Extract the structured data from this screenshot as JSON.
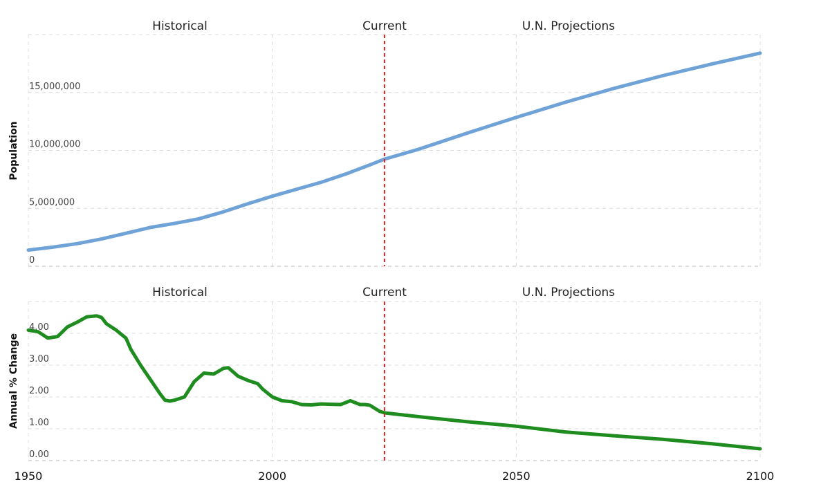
{
  "chart_data": [
    {
      "type": "line",
      "ylabel": "Population",
      "xlim": [
        1950,
        2100
      ],
      "ylim": [
        0,
        20000000
      ],
      "ytick_labels": [
        "0",
        "5,000,000",
        "10,000,000",
        "15,000,000"
      ],
      "section_labels": [
        "Historical",
        "Current",
        "U.N. Projections"
      ],
      "current_year": 2023,
      "series": [
        {
          "name": "Population",
          "color": "#6fa3d8",
          "x": [
            1950,
            1955,
            1960,
            1965,
            1970,
            1975,
            1980,
            1985,
            1990,
            1995,
            2000,
            2005,
            2010,
            2015,
            2020,
            2023,
            2030,
            2040,
            2050,
            2060,
            2070,
            2080,
            2090,
            2100
          ],
          "values": [
            1400000,
            1650000,
            1950000,
            2350000,
            2850000,
            3350000,
            3700000,
            4100000,
            4700000,
            5400000,
            6050000,
            6650000,
            7250000,
            7950000,
            8750000,
            9250000,
            10100000,
            11500000,
            12850000,
            14150000,
            15350000,
            16450000,
            17450000,
            18400000
          ]
        }
      ]
    },
    {
      "type": "line",
      "ylabel": "Annual % Change",
      "xlim": [
        1950,
        2100
      ],
      "ylim": [
        0,
        5
      ],
      "ytick_labels": [
        "0.00",
        "1.00",
        "2.00",
        "3.00",
        "4.00"
      ],
      "xtick_labels": [
        "1950",
        "2000",
        "2050",
        "2100"
      ],
      "section_labels": [
        "Historical",
        "Current",
        "U.N. Projections"
      ],
      "current_year": 2023,
      "series": [
        {
          "name": "Annual % Change",
          "color": "#1f8c1f",
          "x": [
            1950,
            1952,
            1954,
            1956,
            1958,
            1960,
            1962,
            1964,
            1965,
            1966,
            1968,
            1970,
            1971,
            1973,
            1975,
            1977,
            1978,
            1979,
            1980,
            1982,
            1984,
            1986,
            1988,
            1990,
            1991,
            1993,
            1995,
            1997,
            1998,
            2000,
            2002,
            2004,
            2006,
            2008,
            2010,
            2012,
            2014,
            2016,
            2018,
            2019,
            2020,
            2022,
            2023,
            2030,
            2040,
            2050,
            2060,
            2070,
            2080,
            2090,
            2100
          ],
          "values": [
            4.1,
            4.05,
            3.85,
            3.9,
            4.2,
            4.35,
            4.52,
            4.55,
            4.5,
            4.3,
            4.1,
            3.85,
            3.5,
            3.0,
            2.55,
            2.1,
            1.9,
            1.87,
            1.9,
            2.0,
            2.48,
            2.75,
            2.72,
            2.9,
            2.92,
            2.65,
            2.52,
            2.42,
            2.25,
            2.0,
            1.88,
            1.85,
            1.76,
            1.75,
            1.78,
            1.77,
            1.76,
            1.88,
            1.76,
            1.76,
            1.74,
            1.55,
            1.5,
            1.38,
            1.22,
            1.08,
            0.9,
            0.78,
            0.67,
            0.53,
            0.37
          ]
        }
      ]
    }
  ]
}
